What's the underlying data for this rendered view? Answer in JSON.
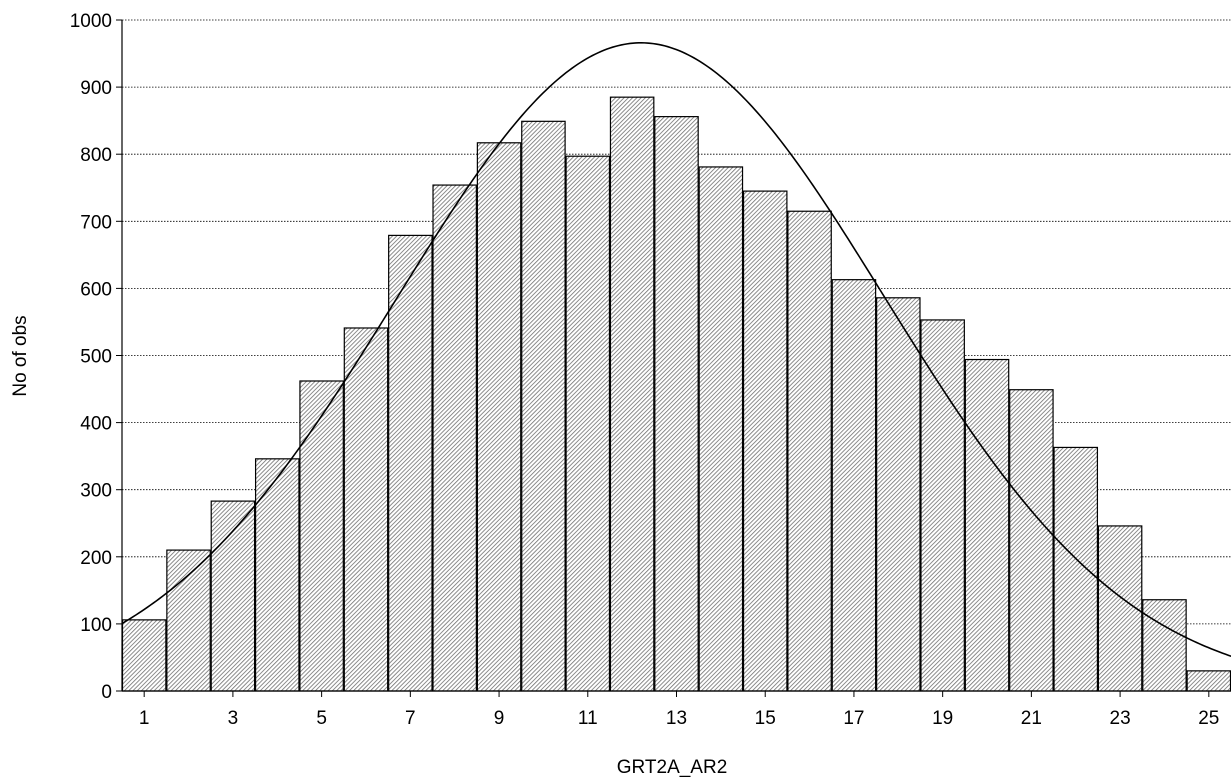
{
  "chart_data": {
    "type": "bar",
    "title": "",
    "xlabel": "GRT2A_AR2",
    "ylabel": "No of obs",
    "categories": [
      1,
      2,
      3,
      4,
      5,
      6,
      7,
      8,
      9,
      10,
      11,
      12,
      13,
      14,
      15,
      16,
      17,
      18,
      19,
      20,
      21,
      22,
      23,
      24,
      25
    ],
    "x_tick_labels": [
      "1",
      "3",
      "5",
      "7",
      "9",
      "11",
      "13",
      "15",
      "17",
      "19",
      "21",
      "23",
      "25"
    ],
    "y_tick_labels": [
      "0",
      "100",
      "200",
      "300",
      "400",
      "500",
      "600",
      "700",
      "800",
      "900",
      "1000"
    ],
    "values": [
      106,
      210,
      283,
      346,
      462,
      541,
      679,
      754,
      817,
      849,
      797,
      885,
      856,
      781,
      745,
      715,
      613,
      586,
      553,
      494,
      449,
      363,
      246,
      136,
      30
    ],
    "ylim": [
      0,
      1000
    ],
    "xlim": [
      0.5,
      25.5
    ],
    "grid": true,
    "fit_curve": {
      "type": "normal",
      "mean": 12.2,
      "sd": 5.5,
      "peak": 966
    },
    "bar_fill_color": "#b8b8b8",
    "line_color": "#000000"
  }
}
